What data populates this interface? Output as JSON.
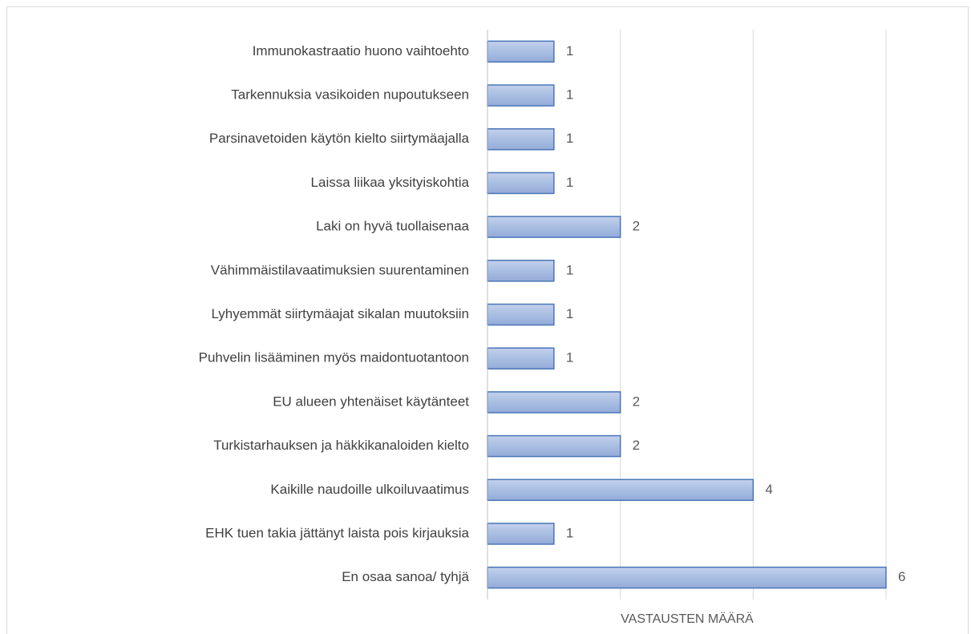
{
  "chart_data": {
    "type": "bar",
    "orientation": "horizontal",
    "categories": [
      "Immunokastraatio huono vaihtoehto",
      "Tarkennuksia vasikoiden nupoutukseen",
      "Parsinavetoiden käytön kielto siirtymäajalla",
      "Laissa liikaa yksityiskohtia",
      "Laki on hyvä tuollaisenaa",
      "Vähimmäistilavaatimuksien suurentaminen",
      "Lyhyemmät siirtymäajat sikalan muutoksiin",
      "Puhvelin lisääminen myös maidontuotantoon",
      "EU alueen yhtenäiset käytänteet",
      "Turkistarhauksen ja häkkikanaloiden kielto",
      "Kaikille naudoille ulkoiluvaatimus",
      "EHK tuen takia jättänyt laista pois kirjauksia",
      "En osaa sanoa/ tyhjä"
    ],
    "values": [
      1,
      1,
      1,
      1,
      2,
      1,
      1,
      1,
      2,
      2,
      4,
      1,
      6
    ],
    "color": "#a9bee2",
    "xlabel": "VASTAUSTEN MÄÄRÄ",
    "xlim": [
      0,
      6
    ],
    "xticks": [
      0,
      2,
      4,
      6
    ],
    "grid": true
  }
}
